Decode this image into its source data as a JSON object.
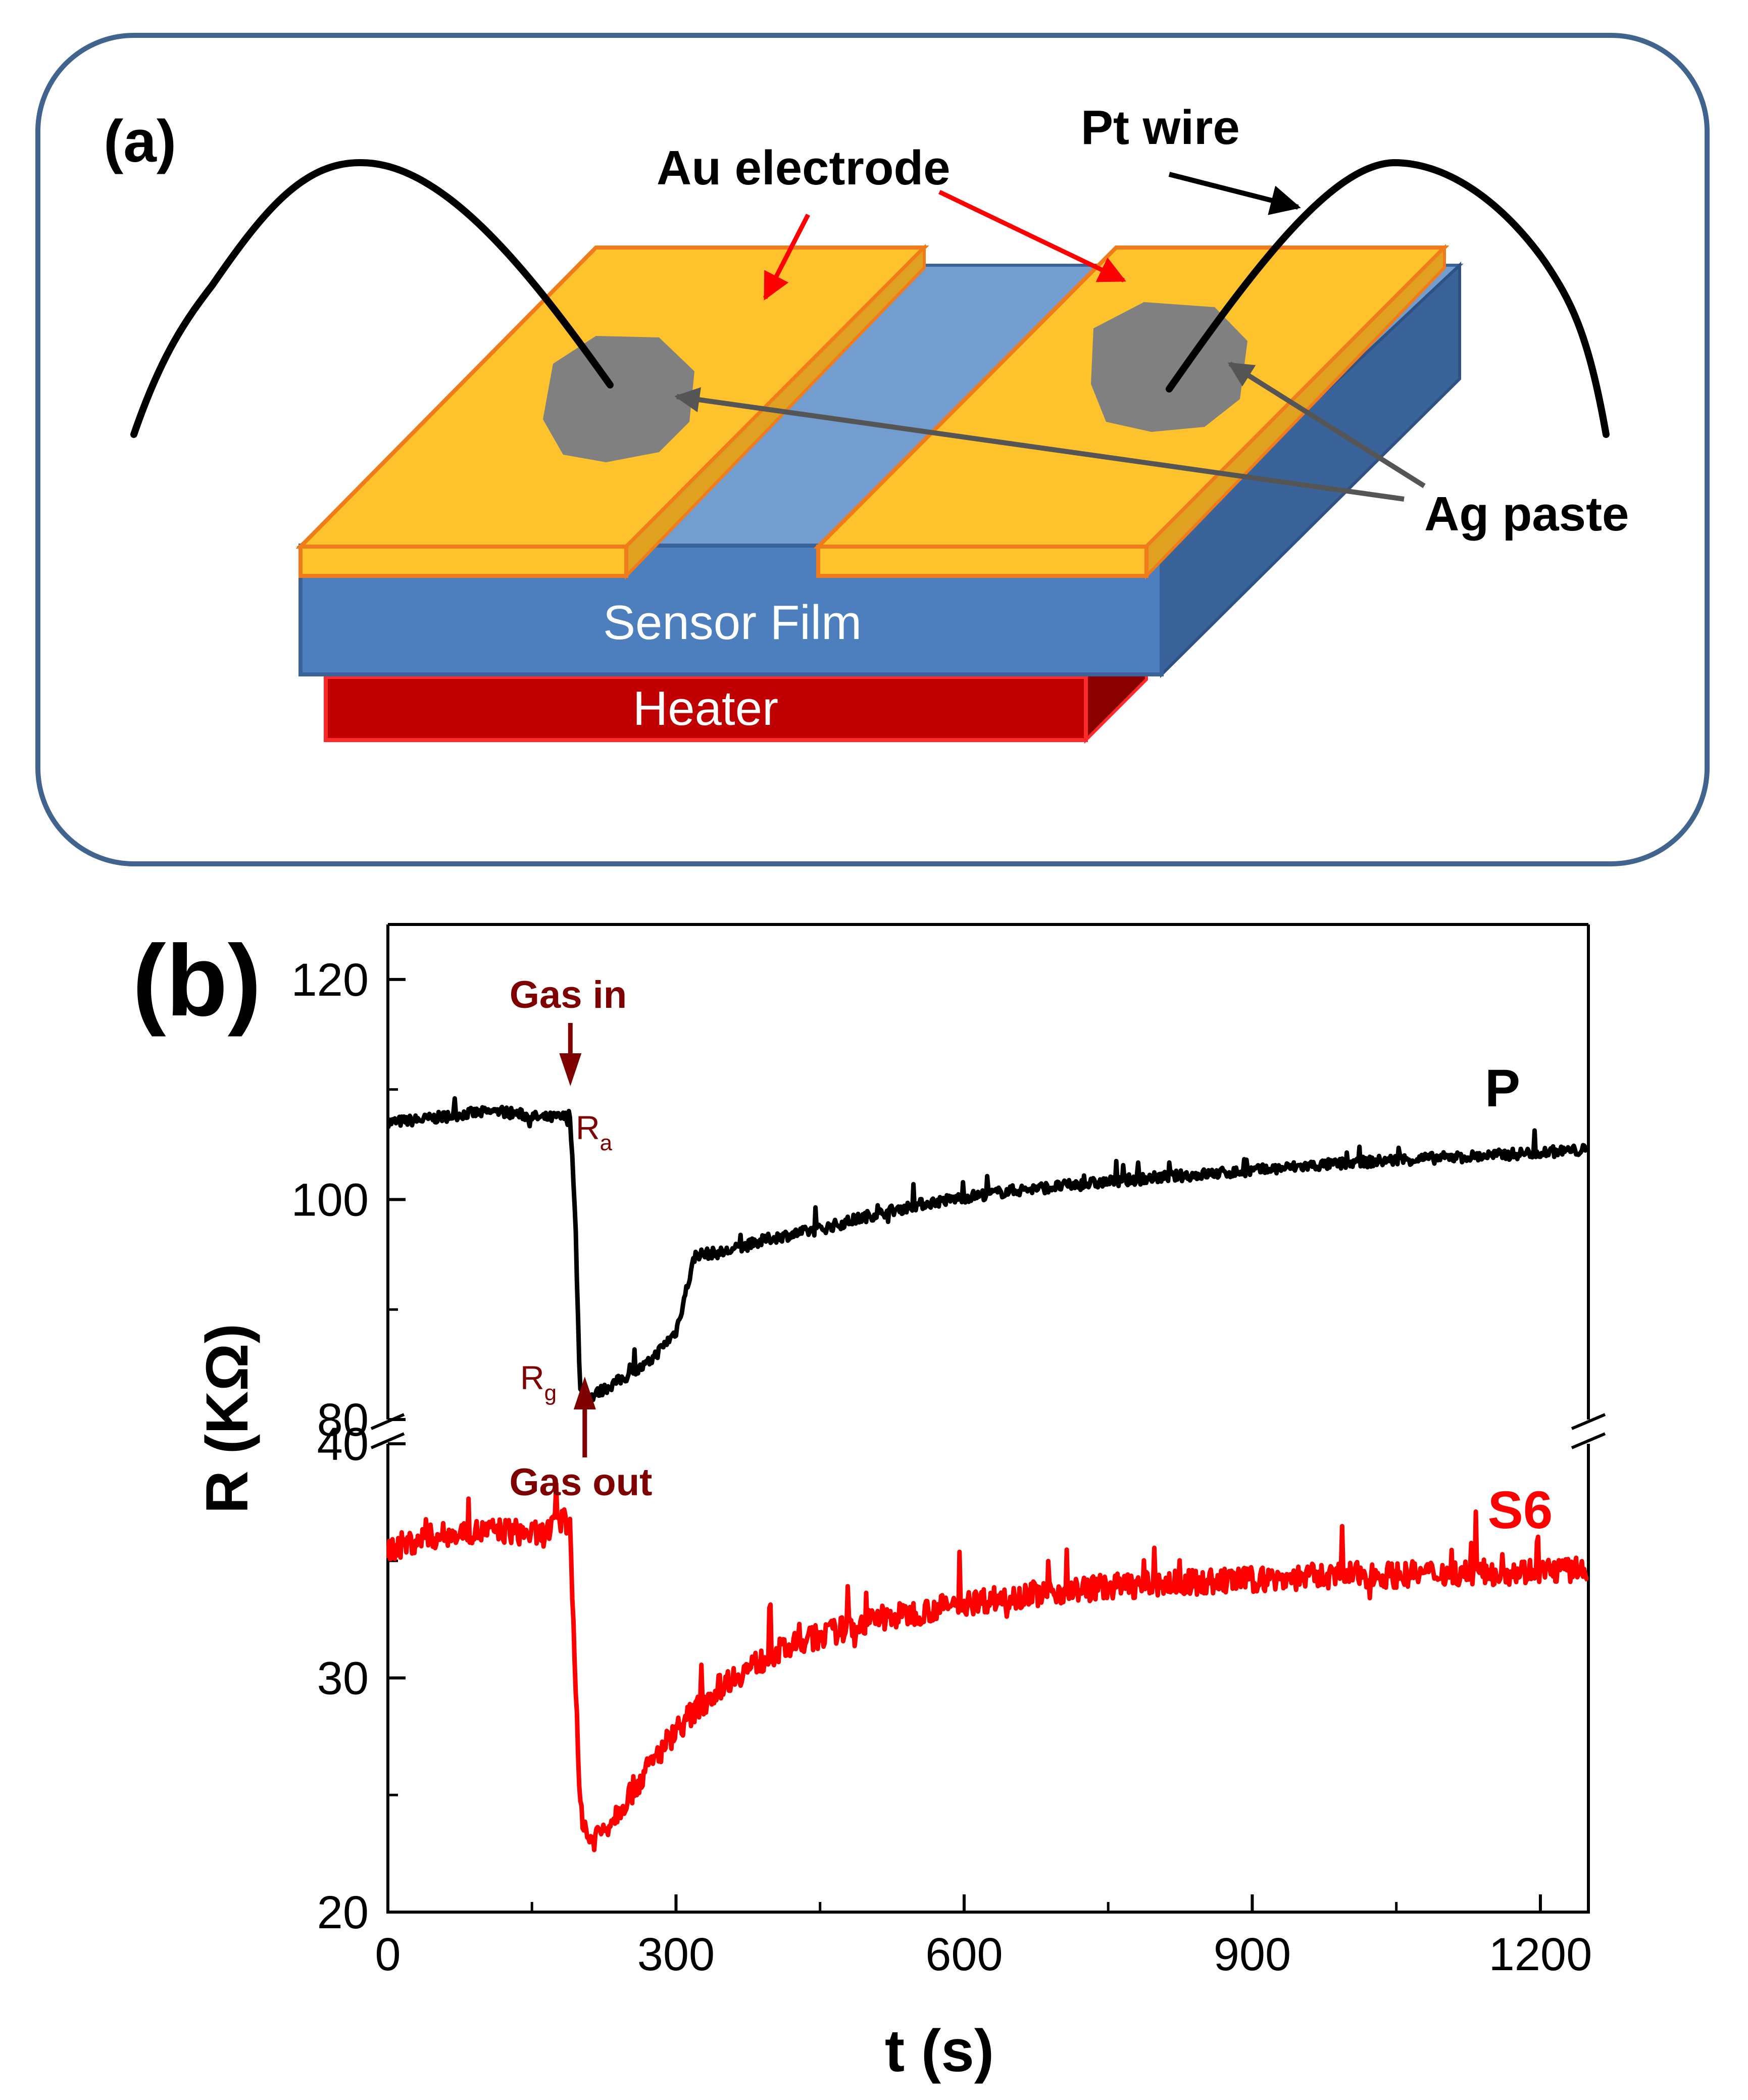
{
  "panel_a": {
    "label": "(a)",
    "labels": {
      "au_electrode": "Au electrode",
      "pt_wire": "Pt wire",
      "ag_paste": "Ag paste",
      "sensor_film": "Sensor Film",
      "heater": "Heater"
    },
    "colors": {
      "frame": "#41648f",
      "electrode_fill": "#fdc22c",
      "electrode_edge": "#f07b1a",
      "film_front": "#4d7ebe",
      "film_top": "#739ccf",
      "film_side": "#3a6499",
      "heater_front": "#c00000",
      "heater_edge": "#ff2a2a",
      "paste": "#808080",
      "wire": "#000000",
      "red_arrow": "#ff0000",
      "grey_arrow": "#555555"
    }
  },
  "panel_b": {
    "label": "(b)",
    "annotations": {
      "gas_in": "Gas in",
      "gas_out": "Gas out",
      "ra_main": "R",
      "ra_sub": "a",
      "rg_main": "R",
      "rg_sub": "g",
      "color": "#7f0000"
    },
    "series_labels": {
      "p": "P",
      "s6": "S6"
    }
  },
  "chart_data": {
    "type": "line",
    "xlabel": "t (s)",
    "ylabel": "R (KΩ)",
    "xlim": [
      0,
      1250
    ],
    "x_ticks": [
      0,
      300,
      600,
      900,
      1200
    ],
    "x_tick_labels": [
      "0",
      "300",
      "600",
      "900",
      "1200"
    ],
    "broken_y_axis": true,
    "upper_axis": {
      "ylim": [
        80,
        125
      ],
      "ticks": [
        80,
        100,
        120
      ],
      "tick_labels": [
        "80",
        "100",
        "120"
      ]
    },
    "lower_axis": {
      "ylim": [
        20,
        40
      ],
      "ticks": [
        20,
        30,
        40
      ],
      "tick_labels": [
        "20",
        "30",
        "40"
      ]
    },
    "gas_in_time": 190,
    "gas_out_time": 205,
    "series": [
      {
        "name": "P",
        "axis": "upper",
        "color": "#000000",
        "x": [
          0,
          40,
          80,
          120,
          160,
          185,
          190,
          195,
          200,
          210,
          230,
          250,
          270,
          290,
          300,
          320,
          350,
          400,
          450,
          500,
          550,
          600,
          650,
          700,
          750,
          800,
          850,
          900,
          950,
          1000,
          1050,
          1100,
          1150,
          1200,
          1250
        ],
        "y": [
          107,
          107.3,
          107.8,
          108,
          107.4,
          107.5,
          107,
          99,
          82.5,
          82,
          83,
          84,
          85,
          87,
          88,
          95,
          95.2,
          96.5,
          97.3,
          98.5,
          99.5,
          100.2,
          100.8,
          101.2,
          101.6,
          102,
          102.3,
          102.6,
          103,
          103.3,
          103.6,
          103.8,
          104,
          104.3,
          104.5
        ]
      },
      {
        "name": "S6",
        "axis": "lower",
        "color": "#ff0000",
        "x": [
          0,
          40,
          80,
          120,
          160,
          185,
          190,
          195,
          200,
          210,
          230,
          260,
          300,
          350,
          400,
          450,
          500,
          550,
          600,
          650,
          700,
          750,
          800,
          850,
          900,
          950,
          1000,
          1050,
          1100,
          1150,
          1200,
          1250
        ],
        "y": [
          35.5,
          36,
          36.2,
          36.3,
          36.1,
          36.8,
          36.4,
          30,
          24.5,
          23,
          23.8,
          25.5,
          27.8,
          29.8,
          31,
          31.8,
          32.4,
          32.8,
          33.2,
          33.5,
          33.7,
          33.9,
          34,
          34.1,
          34.2,
          34.3,
          34.4,
          34.4,
          34.5,
          34.5,
          34.6,
          34.6
        ]
      }
    ]
  }
}
